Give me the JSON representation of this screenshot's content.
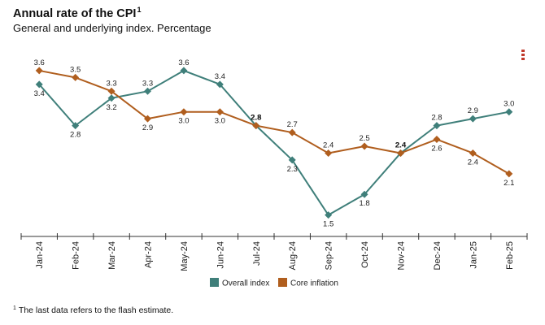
{
  "header": {
    "title": "Annual rate of the CPI",
    "title_sup": "1",
    "subtitle": "General and underlying index. Percentage"
  },
  "menu_icon": "more-vertical-icon",
  "footnote": {
    "marker": "1",
    "text": "The last data refers to the flash estimate."
  },
  "chart_data": {
    "type": "line",
    "title": "Annual rate of the CPI",
    "subtitle": "General and underlying index. Percentage",
    "xlabel": "",
    "ylabel": "",
    "categories": [
      "Jan-24",
      "Feb-24",
      "Mar-24",
      "Apr-24",
      "May-24",
      "Jun-24",
      "Jul-24",
      "Aug-24",
      "Sep-24",
      "Oct-24",
      "Nov-24",
      "Dec-24",
      "Jan-25",
      "Feb-25"
    ],
    "ylim": [
      1.2,
      3.8
    ],
    "series": [
      {
        "name": "Overall index",
        "color": "#3f7f7a",
        "values": [
          3.4,
          2.8,
          3.2,
          3.3,
          3.6,
          3.4,
          2.8,
          2.3,
          1.5,
          1.8,
          2.4,
          2.8,
          2.9,
          3.0
        ],
        "labels": [
          "3.4",
          "2.8",
          "3.2",
          "3.3",
          "3.6",
          "3.4",
          "2.8",
          "2.3",
          "1.5",
          "1.8",
          "2.4",
          "2.8",
          "2.9",
          "3.0"
        ]
      },
      {
        "name": "Core inflation",
        "color": "#b05e1e",
        "values": [
          3.6,
          3.5,
          3.3,
          2.9,
          3.0,
          3.0,
          2.8,
          2.7,
          2.4,
          2.5,
          2.4,
          2.6,
          2.4,
          2.1
        ],
        "labels": [
          "3.6",
          "3.5",
          "3.3",
          "2.9",
          "3.0",
          "3.0",
          "2.8",
          "2.7",
          "2.4",
          "2.5",
          "2.4",
          "2.6",
          "2.4",
          "2.1"
        ]
      }
    ],
    "legend": {
      "position": "bottom",
      "entries": [
        "Overall index",
        "Core inflation"
      ]
    },
    "grid": false
  }
}
